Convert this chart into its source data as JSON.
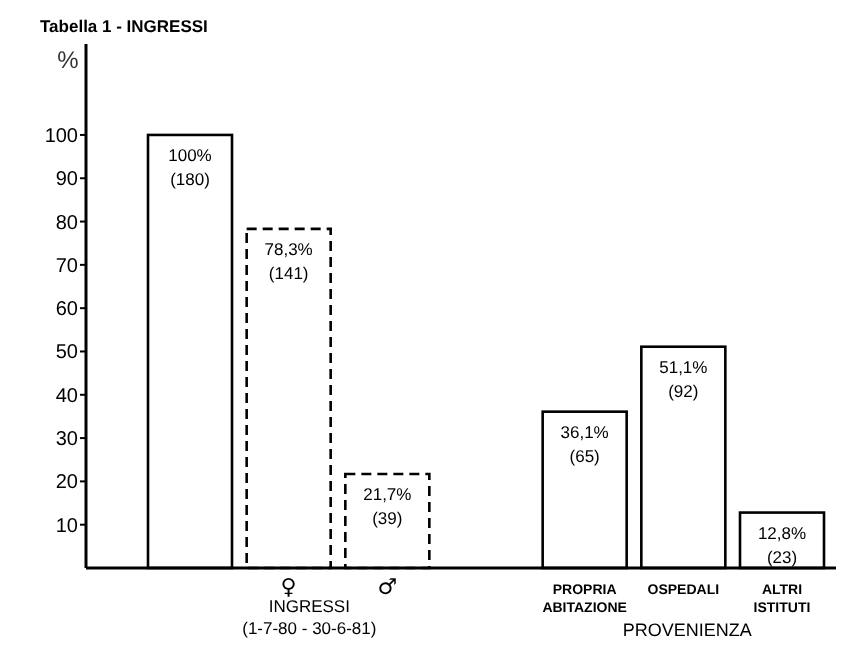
{
  "chart_data": {
    "type": "bar",
    "title": "Tabella 1 - INGRESSI",
    "ylabel": "%",
    "categories": [
      null,
      "♀",
      "♂",
      null,
      "PROPRIA ABITAZIONE",
      "OSPEDALI",
      "ALTRI ISTITUTI"
    ],
    "series": [
      {
        "color": "#ffffff",
        "line_style": "solid",
        "values": [
          100,
          null,
          null,
          null,
          36.1,
          51.1,
          12.8
        ],
        "value_labels": [
          "100% (180)",
          null,
          null,
          null,
          "36,1% (65)",
          "51,1% (92)",
          "12,8% (23)"
        ]
      },
      {
        "color": "#ffffff",
        "line_style": "dashed",
        "values": [
          null,
          78.3,
          21.7,
          null,
          null,
          null,
          null
        ],
        "value_labels": [
          null,
          "78,3% (141)",
          "21,7% (39)",
          null,
          null,
          null,
          null
        ]
      }
    ],
    "ylim": [
      0,
      121
    ],
    "yticks": [
      10,
      20,
      30,
      40,
      50,
      60,
      70,
      80,
      90,
      100
    ],
    "grid": false,
    "annotations": [
      "INGRESSI (1-7-80 - 30-6-81)",
      "PROVENIENZA"
    ]
  }
}
